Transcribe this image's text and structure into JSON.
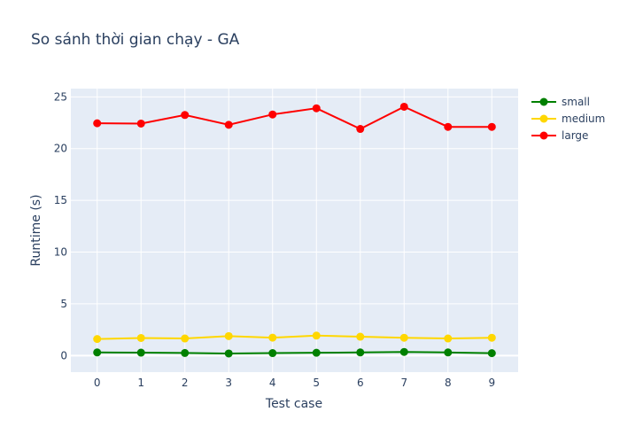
{
  "chart_data": {
    "type": "line",
    "title": "So sánh thời gian chạy - GA",
    "xlabel": "Test case",
    "ylabel": "Runtime (s)",
    "x": [
      0,
      1,
      2,
      3,
      4,
      5,
      6,
      7,
      8,
      9
    ],
    "x_ticks": [
      "0",
      "1",
      "2",
      "3",
      "4",
      "5",
      "6",
      "7",
      "8",
      "9"
    ],
    "y_ticks": [
      "0",
      "5",
      "10",
      "15",
      "20",
      "25"
    ],
    "xlim": [
      -0.6,
      9.6
    ],
    "ylim": [
      -1.6,
      25.8
    ],
    "grid": true,
    "legend_position": "top-right",
    "plot_background": "#e5ecf6",
    "series": [
      {
        "name": "small",
        "color": "#008000",
        "values": [
          0.3,
          0.28,
          0.25,
          0.2,
          0.24,
          0.27,
          0.3,
          0.35,
          0.3,
          0.23
        ]
      },
      {
        "name": "medium",
        "color": "#ffd700",
        "values": [
          1.6,
          1.7,
          1.65,
          1.88,
          1.73,
          1.93,
          1.82,
          1.72,
          1.65,
          1.72
        ]
      },
      {
        "name": "large",
        "color": "#ff0000",
        "values": [
          22.45,
          22.42,
          23.25,
          22.3,
          23.3,
          23.9,
          21.9,
          24.05,
          22.1,
          22.1
        ]
      }
    ]
  }
}
